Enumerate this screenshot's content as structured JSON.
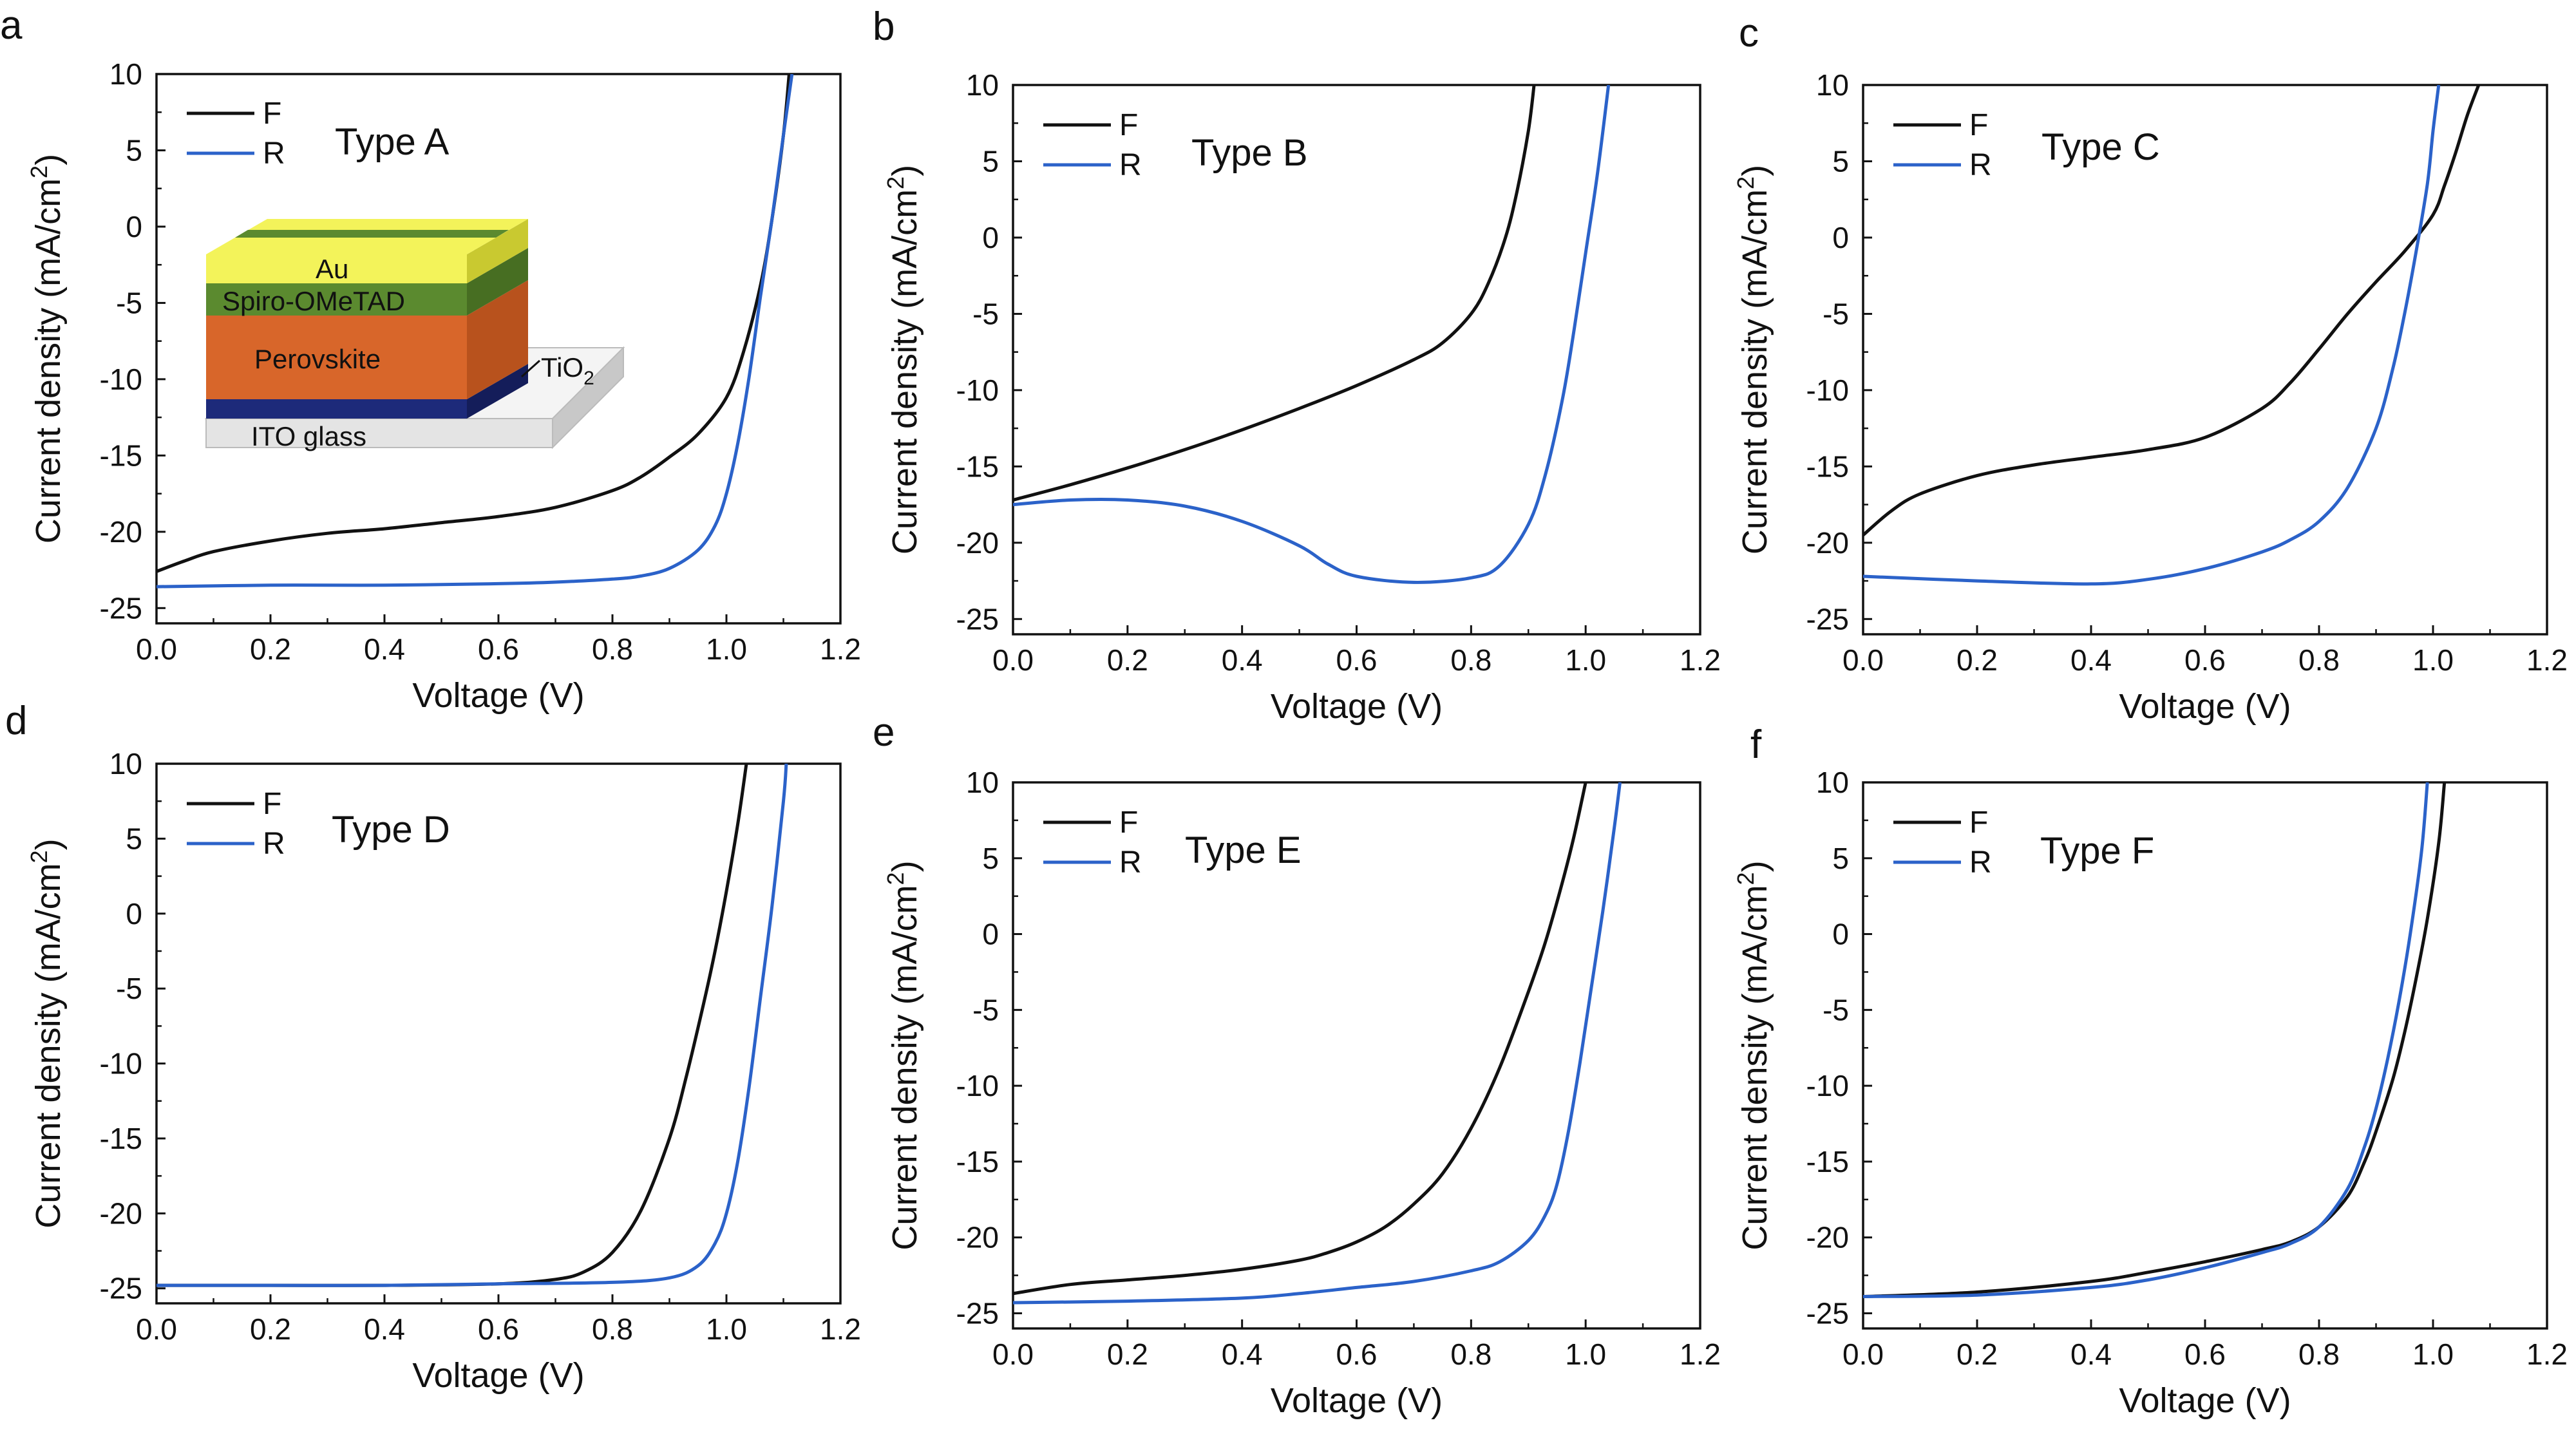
{
  "colors": {
    "forward": "#111111",
    "reverse": "#2b62c9",
    "axis": "#111111"
  },
  "inset": {
    "layers": [
      "Au",
      "Spiro-OMeTAD",
      "Perovskite",
      "TiO",
      "ITO glass"
    ],
    "tio2_subscript": "2",
    "colors": {
      "au": "#f3f35a",
      "spiro": "#5b8a2f",
      "perovskite": "#d8662a",
      "tio2": "#1d2a7a",
      "glass": "#e4e4e4"
    }
  },
  "chart_data": [
    {
      "panel": "a",
      "type": "line",
      "label": "Type A",
      "xlabel": "Voltage (V)",
      "ylabel_main": "Current density (mA/cm",
      "ylabel_sup": "2",
      "ylabel_end": ")",
      "xlim": [
        0,
        1.2
      ],
      "ylim": [
        -26,
        10
      ],
      "xticks": [
        0.0,
        0.2,
        0.4,
        0.6,
        0.8,
        1.0,
        1.2
      ],
      "yticks": [
        -25,
        -20,
        -15,
        -10,
        -5,
        0,
        5,
        10
      ],
      "xtick_labels": [
        "0.0",
        "0.2",
        "0.4",
        "0.6",
        "0.8",
        "1.0",
        "1.2"
      ],
      "ytick_labels": [
        "-25",
        "-20",
        "-15",
        "-10",
        "-5",
        "0",
        "5",
        "10"
      ],
      "legend": [
        "F",
        "R"
      ],
      "series": [
        {
          "name": "F",
          "x": [
            0,
            0.05,
            0.1,
            0.2,
            0.3,
            0.4,
            0.5,
            0.6,
            0.7,
            0.8,
            0.85,
            0.9,
            0.95,
            1.0,
            1.03,
            1.06,
            1.08,
            1.1,
            1.11
          ],
          "y": [
            -22.6,
            -21.9,
            -21.3,
            -20.6,
            -20.1,
            -19.8,
            -19.4,
            -19.0,
            -18.4,
            -17.3,
            -16.4,
            -15.1,
            -13.6,
            -11.2,
            -8.2,
            -3.8,
            0.5,
            6.0,
            10.0
          ]
        },
        {
          "name": "R",
          "x": [
            0,
            0.2,
            0.4,
            0.6,
            0.7,
            0.8,
            0.85,
            0.9,
            0.95,
            0.98,
            1.0,
            1.02,
            1.04,
            1.06,
            1.08,
            1.1,
            1.115
          ],
          "y": [
            -23.6,
            -23.5,
            -23.5,
            -23.4,
            -23.3,
            -23.1,
            -22.9,
            -22.4,
            -21.2,
            -19.6,
            -17.5,
            -14.2,
            -9.8,
            -4.5,
            0.5,
            6.0,
            10.0
          ]
        }
      ]
    },
    {
      "panel": "b",
      "type": "line",
      "label": "Type B",
      "xlabel": "Voltage (V)",
      "ylabel_main": "Current density (mA/cm",
      "ylabel_sup": "2",
      "ylabel_end": ")",
      "xlim": [
        0,
        1.2
      ],
      "ylim": [
        -26,
        10
      ],
      "xticks": [
        0.0,
        0.2,
        0.4,
        0.6,
        0.8,
        1.0,
        1.2
      ],
      "yticks": [
        -25,
        -20,
        -15,
        -10,
        -5,
        0,
        5,
        10
      ],
      "xtick_labels": [
        "0.0",
        "0.2",
        "0.4",
        "0.6",
        "0.8",
        "1.0",
        "1.2"
      ],
      "ytick_labels": [
        "-25",
        "-20",
        "-15",
        "-10",
        "-5",
        "0",
        "5",
        "10"
      ],
      "legend": [
        "F",
        "R"
      ],
      "series": [
        {
          "name": "F",
          "x": [
            0,
            0.1,
            0.2,
            0.3,
            0.4,
            0.5,
            0.6,
            0.7,
            0.75,
            0.8,
            0.83,
            0.86,
            0.88,
            0.9,
            0.91
          ],
          "y": [
            -17.2,
            -16.2,
            -15.1,
            -13.9,
            -12.6,
            -11.2,
            -9.7,
            -8.0,
            -6.9,
            -5.0,
            -3.0,
            0.0,
            3.0,
            7.0,
            10.0
          ]
        },
        {
          "name": "R",
          "x": [
            0,
            0.1,
            0.2,
            0.3,
            0.4,
            0.5,
            0.55,
            0.6,
            0.7,
            0.8,
            0.85,
            0.9,
            0.93,
            0.96,
            0.98,
            1.0,
            1.02,
            1.04
          ],
          "y": [
            -17.5,
            -17.2,
            -17.2,
            -17.6,
            -18.6,
            -20.2,
            -21.4,
            -22.2,
            -22.6,
            -22.3,
            -21.5,
            -18.8,
            -15.5,
            -10.5,
            -6.0,
            -1.0,
            4.0,
            10.0
          ]
        }
      ]
    },
    {
      "panel": "c",
      "type": "line",
      "label": "Type C",
      "xlabel": "Voltage (V)",
      "ylabel_main": "Current density (mA/cm",
      "ylabel_sup": "2",
      "ylabel_end": ")",
      "xlim": [
        0,
        1.2
      ],
      "ylim": [
        -26,
        10
      ],
      "xticks": [
        0.0,
        0.2,
        0.4,
        0.6,
        0.8,
        1.0,
        1.2
      ],
      "yticks": [
        -25,
        -20,
        -15,
        -10,
        -5,
        0,
        5,
        10
      ],
      "xtick_labels": [
        "0.0",
        "0.2",
        "0.4",
        "0.6",
        "0.8",
        "1.0",
        "1.2"
      ],
      "ytick_labels": [
        "-25",
        "-20",
        "-15",
        "-10",
        "-5",
        "0",
        "5",
        "10"
      ],
      "legend": [
        "F",
        "R"
      ],
      "series": [
        {
          "name": "F",
          "x": [
            0,
            0.05,
            0.1,
            0.2,
            0.3,
            0.4,
            0.5,
            0.6,
            0.7,
            0.75,
            0.8,
            0.85,
            0.9,
            0.95,
            1.0,
            1.02,
            1.04,
            1.06,
            1.08
          ],
          "y": [
            -19.5,
            -17.9,
            -16.8,
            -15.6,
            -14.9,
            -14.4,
            -13.9,
            -13.1,
            -11.2,
            -9.5,
            -7.3,
            -5.0,
            -2.9,
            -0.9,
            1.5,
            3.4,
            5.6,
            8.0,
            10.0
          ]
        },
        {
          "name": "R",
          "x": [
            0,
            0.2,
            0.4,
            0.5,
            0.6,
            0.7,
            0.75,
            0.8,
            0.85,
            0.9,
            0.93,
            0.95,
            0.97,
            0.99,
            1.0,
            1.01
          ],
          "y": [
            -22.2,
            -22.5,
            -22.7,
            -22.4,
            -21.7,
            -20.6,
            -19.8,
            -18.6,
            -16.4,
            -12.5,
            -8.5,
            -5.0,
            -1.0,
            3.5,
            7.0,
            10.0
          ]
        }
      ]
    },
    {
      "panel": "d",
      "type": "line",
      "label": "Type D",
      "xlabel": "Voltage (V)",
      "ylabel_main": "Current density (mA/cm",
      "ylabel_sup": "2",
      "ylabel_end": ")",
      "xlim": [
        0,
        1.2
      ],
      "ylim": [
        -26,
        10
      ],
      "xticks": [
        0.0,
        0.2,
        0.4,
        0.6,
        0.8,
        1.0,
        1.2
      ],
      "yticks": [
        -25,
        -20,
        -15,
        -10,
        -5,
        0,
        5,
        10
      ],
      "xtick_labels": [
        "0.0",
        "0.2",
        "0.4",
        "0.6",
        "0.8",
        "1.0",
        "1.2"
      ],
      "ytick_labels": [
        "-25",
        "-20",
        "-15",
        "-10",
        "-5",
        "0",
        "5",
        "10"
      ],
      "legend": [
        "F",
        "R"
      ],
      "series": [
        {
          "name": "F",
          "x": [
            0,
            0.2,
            0.4,
            0.6,
            0.7,
            0.75,
            0.8,
            0.85,
            0.9,
            0.93,
            0.96,
            0.98,
            1.0,
            1.02,
            1.035
          ],
          "y": [
            -24.8,
            -24.8,
            -24.8,
            -24.7,
            -24.4,
            -23.9,
            -22.6,
            -19.8,
            -15.0,
            -10.8,
            -6.0,
            -2.5,
            1.5,
            6.0,
            10.0
          ]
        },
        {
          "name": "R",
          "x": [
            0,
            0.2,
            0.4,
            0.6,
            0.8,
            0.9,
            0.95,
            0.98,
            1.0,
            1.02,
            1.04,
            1.06,
            1.08,
            1.1,
            1.105
          ],
          "y": [
            -24.8,
            -24.8,
            -24.8,
            -24.7,
            -24.6,
            -24.3,
            -23.5,
            -22.0,
            -20.0,
            -16.5,
            -11.5,
            -5.5,
            0.5,
            7.5,
            10.0
          ]
        }
      ]
    },
    {
      "panel": "e",
      "type": "line",
      "label": "Type E",
      "xlabel": "Voltage (V)",
      "ylabel_main": "Current density (mA/cm",
      "ylabel_sup": "2",
      "ylabel_end": ")",
      "xlim": [
        0,
        1.2
      ],
      "ylim": [
        -26,
        10
      ],
      "xticks": [
        0.0,
        0.2,
        0.4,
        0.6,
        0.8,
        1.0,
        1.2
      ],
      "yticks": [
        -25,
        -20,
        -15,
        -10,
        -5,
        0,
        5,
        10
      ],
      "xtick_labels": [
        "0.0",
        "0.2",
        "0.4",
        "0.6",
        "0.8",
        "1.0",
        "1.2"
      ],
      "ytick_labels": [
        "-25",
        "-20",
        "-15",
        "-10",
        "-5",
        "0",
        "5",
        "10"
      ],
      "legend": [
        "F",
        "R"
      ],
      "series": [
        {
          "name": "F",
          "x": [
            0,
            0.1,
            0.2,
            0.3,
            0.4,
            0.5,
            0.55,
            0.6,
            0.65,
            0.7,
            0.75,
            0.8,
            0.85,
            0.9,
            0.93,
            0.96,
            0.98,
            1.0
          ],
          "y": [
            -23.7,
            -23.1,
            -22.8,
            -22.5,
            -22.1,
            -21.5,
            -21.0,
            -20.3,
            -19.3,
            -17.8,
            -15.8,
            -12.8,
            -8.8,
            -3.8,
            -0.5,
            3.5,
            6.5,
            10.0
          ]
        },
        {
          "name": "R",
          "x": [
            0,
            0.2,
            0.4,
            0.5,
            0.6,
            0.7,
            0.8,
            0.85,
            0.9,
            0.93,
            0.95,
            0.97,
            0.99,
            1.01,
            1.03,
            1.05,
            1.06
          ],
          "y": [
            -24.3,
            -24.2,
            -24.0,
            -23.7,
            -23.3,
            -22.9,
            -22.2,
            -21.6,
            -20.2,
            -18.5,
            -16.5,
            -13.0,
            -8.5,
            -3.5,
            1.5,
            7.0,
            10.0
          ]
        }
      ]
    },
    {
      "panel": "f",
      "type": "line",
      "label": "Type F",
      "xlabel": "Voltage (V)",
      "ylabel_main": "Current density (mA/cm",
      "ylabel_sup": "2",
      "ylabel_end": ")",
      "xlim": [
        0,
        1.2
      ],
      "ylim": [
        -26,
        10
      ],
      "xticks": [
        0.0,
        0.2,
        0.4,
        0.6,
        0.8,
        1.0,
        1.2
      ],
      "yticks": [
        -25,
        -20,
        -15,
        -10,
        -5,
        0,
        5,
        10
      ],
      "xtick_labels": [
        "0.0",
        "0.2",
        "0.4",
        "0.6",
        "0.8",
        "1.0",
        "1.2"
      ],
      "ytick_labels": [
        "-25",
        "-20",
        "-15",
        "-10",
        "-5",
        "0",
        "5",
        "10"
      ],
      "legend": [
        "F",
        "R"
      ],
      "series": [
        {
          "name": "F",
          "x": [
            0,
            0.2,
            0.4,
            0.5,
            0.6,
            0.7,
            0.75,
            0.8,
            0.85,
            0.88,
            0.9,
            0.93,
            0.95,
            0.97,
            0.99,
            1.01,
            1.02
          ],
          "y": [
            -23.9,
            -23.6,
            -22.9,
            -22.3,
            -21.6,
            -20.8,
            -20.3,
            -19.3,
            -17.3,
            -15.0,
            -13.0,
            -9.5,
            -6.5,
            -3.0,
            1.0,
            6.0,
            10.0
          ]
        },
        {
          "name": "R",
          "x": [
            0,
            0.2,
            0.4,
            0.5,
            0.6,
            0.7,
            0.75,
            0.8,
            0.85,
            0.88,
            0.9,
            0.92,
            0.94,
            0.96,
            0.98,
            0.99
          ],
          "y": [
            -23.9,
            -23.8,
            -23.3,
            -22.8,
            -22.0,
            -21.0,
            -20.4,
            -19.3,
            -16.8,
            -14.0,
            -11.5,
            -8.3,
            -4.5,
            0.0,
            5.5,
            10.0
          ]
        }
      ]
    }
  ]
}
